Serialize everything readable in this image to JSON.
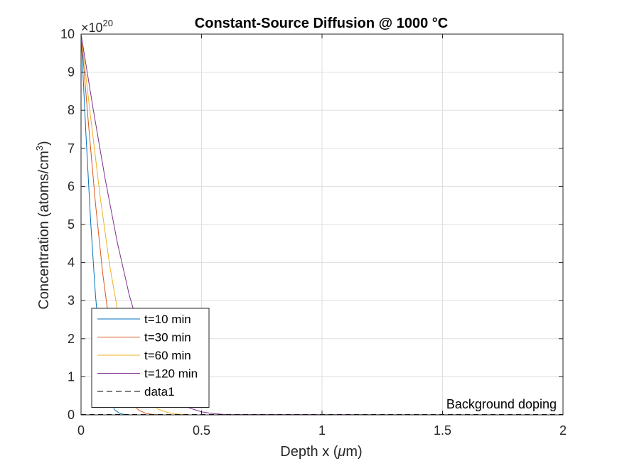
{
  "chart_data": {
    "type": "line",
    "title": "Constant-Source Diffusion @ 1000 °C",
    "xlabel": "Depth x (μm)",
    "ylabel": "Concentration (atoms/cm³)",
    "ylabel_parts": {
      "main": "Concentration (atoms/cm",
      "sup": "3",
      "end": ")"
    },
    "xlabel_parts": {
      "pre": "Depth x (",
      "mu": "μ",
      "post": "m)"
    },
    "xlim": [
      0,
      2
    ],
    "ylim": [
      0,
      10
    ],
    "y_exponent": {
      "base": "×10",
      "power": "20"
    },
    "xticks": [
      0,
      0.5,
      1,
      1.5,
      2
    ],
    "xtick_labels": [
      "0",
      "0.5",
      "1",
      "1.5",
      "2"
    ],
    "yticks": [
      0,
      1,
      2,
      3,
      4,
      5,
      6,
      7,
      8,
      9,
      10
    ],
    "ytick_labels": [
      "0",
      "1",
      "2",
      "3",
      "4",
      "5",
      "6",
      "7",
      "8",
      "9",
      "10"
    ],
    "grid": true,
    "legend_position": "bottom-left",
    "series": [
      {
        "name": "t=10 min",
        "color": "#0072BD",
        "style": "solid",
        "x": [
          0,
          0.02,
          0.04,
          0.06,
          0.08,
          0.1,
          0.12,
          0.14,
          0.16,
          0.18,
          0.2,
          2
        ],
        "y": [
          10,
          7.4,
          5.05,
          3.14,
          1.74,
          0.85,
          0.36,
          0.13,
          0.04,
          0.01,
          0,
          0
        ]
      },
      {
        "name": "t=30 min",
        "color": "#D95319",
        "style": "solid",
        "x": [
          0,
          0.03,
          0.06,
          0.09,
          0.12,
          0.15,
          0.18,
          0.21,
          0.24,
          0.27,
          0.3,
          0.35,
          2
        ],
        "y": [
          10,
          7.7,
          5.55,
          3.71,
          2.28,
          1.28,
          0.65,
          0.3,
          0.12,
          0.04,
          0.01,
          0,
          0
        ]
      },
      {
        "name": "t=60 min",
        "color": "#EDB120",
        "style": "solid",
        "x": [
          0,
          0.04,
          0.08,
          0.12,
          0.16,
          0.2,
          0.24,
          0.28,
          0.32,
          0.36,
          0.4,
          0.45,
          2
        ],
        "y": [
          10,
          7.8,
          5.7,
          3.88,
          2.45,
          1.42,
          0.75,
          0.36,
          0.15,
          0.06,
          0.02,
          0,
          0
        ]
      },
      {
        "name": "t=120 min",
        "color": "#7E2F8E",
        "style": "solid",
        "x": [
          0,
          0.05,
          0.1,
          0.15,
          0.2,
          0.25,
          0.3,
          0.35,
          0.4,
          0.45,
          0.5,
          0.55,
          0.6,
          2
        ],
        "y": [
          10,
          8.05,
          6.2,
          4.55,
          3.15,
          2.05,
          1.25,
          0.71,
          0.37,
          0.18,
          0.08,
          0.03,
          0.01,
          0
        ]
      },
      {
        "name": "data1",
        "color": "#000000",
        "style": "dashed",
        "x": [
          0,
          2
        ],
        "y": [
          0.01,
          0.01
        ]
      }
    ],
    "annotations": [
      {
        "text": "Background doping",
        "x": 1.98,
        "y": 0.2
      }
    ]
  }
}
